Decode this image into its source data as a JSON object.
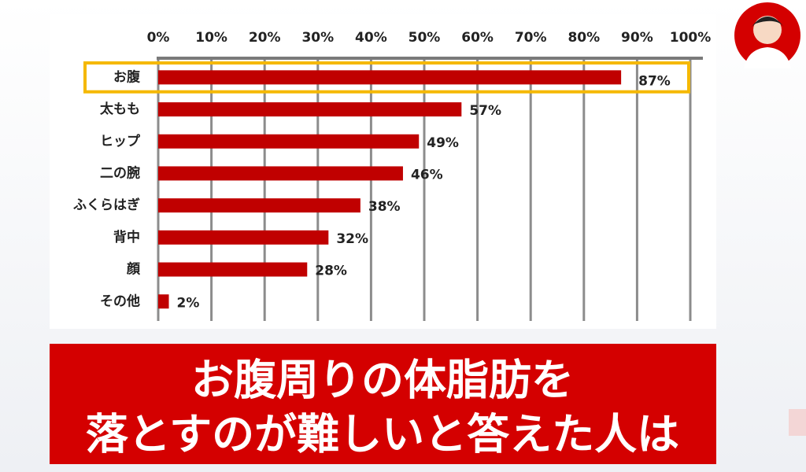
{
  "chart_data": {
    "type": "bar",
    "orientation": "horizontal",
    "categories": [
      "お腹",
      "太もも",
      "ヒップ",
      "二の腕",
      "ふくらはぎ",
      "背中",
      "顔",
      "その他"
    ],
    "values": [
      87,
      57,
      49,
      46,
      38,
      32,
      28,
      2
    ],
    "value_labels": [
      "87%",
      "57%",
      "49%",
      "46%",
      "38%",
      "32%",
      "28%",
      "2%"
    ],
    "color": "#c00000",
    "xlim": [
      0,
      100
    ],
    "xticks": [
      {
        "value": 0,
        "label": "0%"
      },
      {
        "value": 10,
        "label": "10%"
      },
      {
        "value": 20,
        "label": "20%"
      },
      {
        "value": 30,
        "label": "30%"
      },
      {
        "value": 40,
        "label": "40%"
      },
      {
        "value": 50,
        "label": "50%"
      },
      {
        "value": 60,
        "label": "60%"
      },
      {
        "value": 70,
        "label": "70%"
      },
      {
        "value": 80,
        "label": "80%"
      },
      {
        "value": 90,
        "label": "90%"
      },
      {
        "value": 100,
        "label": "100%"
      }
    ],
    "grid": true
  },
  "banner": {
    "lines": [
      "お腹周りの体脂肪を",
      "落とすのが難しいと答えた人は"
    ]
  }
}
